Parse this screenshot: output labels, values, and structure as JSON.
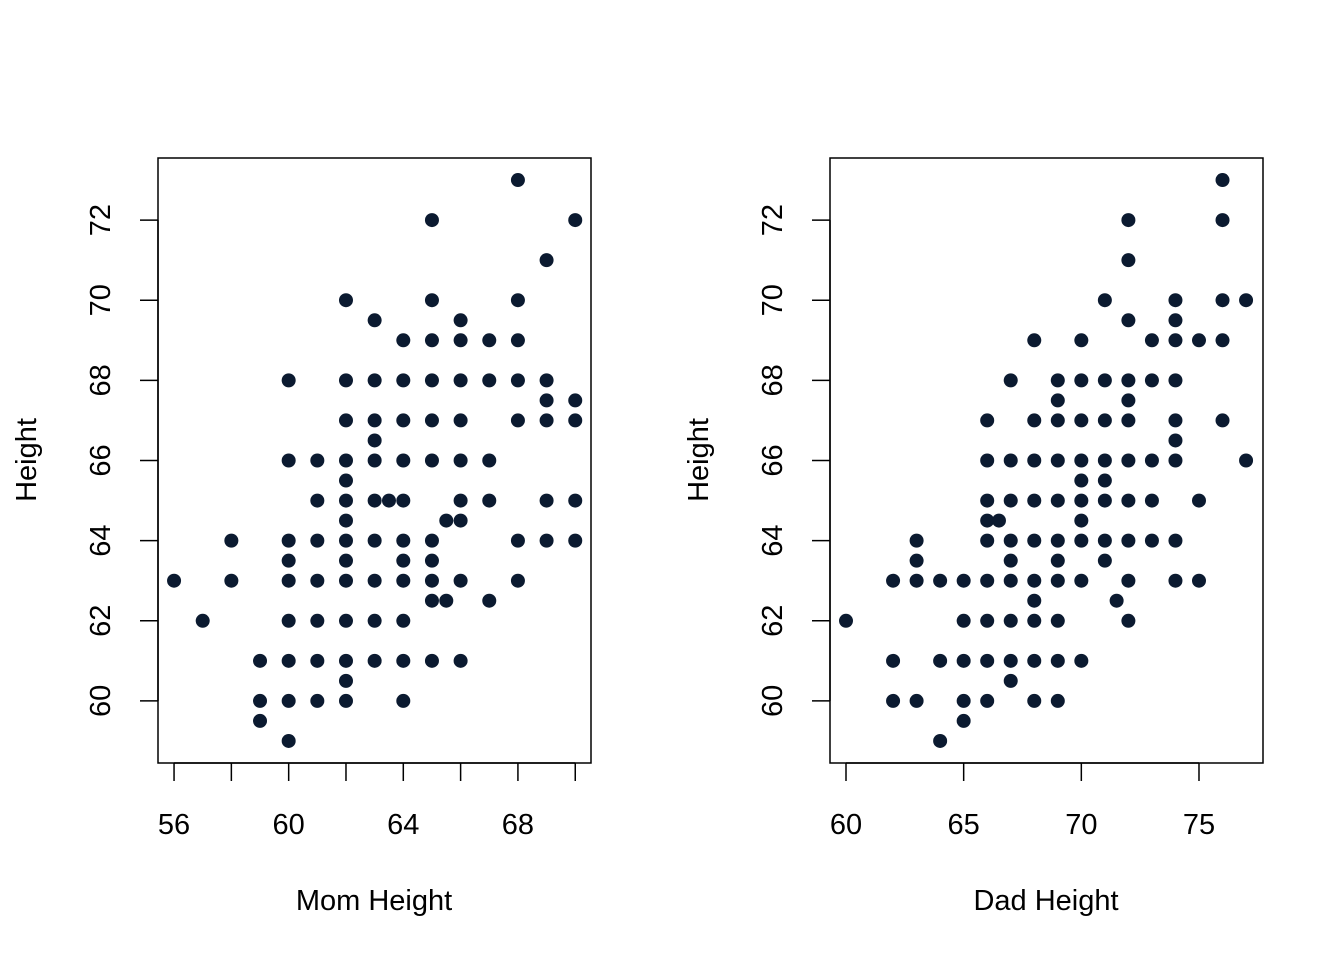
{
  "chart_data": [
    {
      "type": "scatter",
      "xlabel": "Mom Height",
      "ylabel": "Height",
      "xlim": [
        55.44,
        70.55
      ],
      "ylim": [
        58.45,
        73.55
      ],
      "xticks": [
        56,
        60,
        64,
        68
      ],
      "xticks_minor": [
        56,
        58,
        60,
        62,
        64,
        66,
        68,
        70
      ],
      "yticks": [
        60,
        62,
        64,
        66,
        68,
        70,
        72
      ],
      "grid": false,
      "point_color": "#0b1a30",
      "points": [
        [
          56,
          63
        ],
        [
          57,
          62
        ],
        [
          58,
          64
        ],
        [
          58,
          63
        ],
        [
          59,
          61
        ],
        [
          59,
          60
        ],
        [
          59,
          59.5
        ],
        [
          60,
          68
        ],
        [
          60,
          66
        ],
        [
          60,
          64
        ],
        [
          60,
          63.5
        ],
        [
          60,
          63
        ],
        [
          60,
          62
        ],
        [
          60,
          61
        ],
        [
          60,
          60
        ],
        [
          60,
          59
        ],
        [
          61,
          66
        ],
        [
          61,
          65
        ],
        [
          61,
          64
        ],
        [
          61,
          63
        ],
        [
          61,
          62
        ],
        [
          61,
          61
        ],
        [
          61,
          60
        ],
        [
          62,
          70
        ],
        [
          62,
          68
        ],
        [
          62,
          67
        ],
        [
          62,
          66
        ],
        [
          62,
          65.5
        ],
        [
          62,
          65
        ],
        [
          62,
          64.5
        ],
        [
          62,
          64
        ],
        [
          62,
          63.5
        ],
        [
          62,
          63
        ],
        [
          62,
          62
        ],
        [
          62,
          61
        ],
        [
          62,
          60.5
        ],
        [
          62,
          60
        ],
        [
          63,
          69.5
        ],
        [
          63,
          68
        ],
        [
          63,
          67
        ],
        [
          63,
          66.5
        ],
        [
          63,
          66
        ],
        [
          63,
          65
        ],
        [
          63,
          64
        ],
        [
          63,
          63
        ],
        [
          63,
          62
        ],
        [
          63,
          61
        ],
        [
          63.5,
          65
        ],
        [
          64,
          69
        ],
        [
          64,
          68
        ],
        [
          64,
          67
        ],
        [
          64,
          66
        ],
        [
          64,
          65
        ],
        [
          64,
          64
        ],
        [
          64,
          63.5
        ],
        [
          64,
          63
        ],
        [
          64,
          62
        ],
        [
          64,
          61
        ],
        [
          64,
          60
        ],
        [
          65,
          72
        ],
        [
          65,
          70
        ],
        [
          65,
          69
        ],
        [
          65,
          68
        ],
        [
          65,
          67
        ],
        [
          65,
          66
        ],
        [
          65,
          64
        ],
        [
          65,
          63.5
        ],
        [
          65,
          63
        ],
        [
          65,
          62.5
        ],
        [
          65,
          61
        ],
        [
          65.5,
          64.5
        ],
        [
          65.5,
          62.5
        ],
        [
          66,
          69.5
        ],
        [
          66,
          69
        ],
        [
          66,
          68
        ],
        [
          66,
          67
        ],
        [
          66,
          66
        ],
        [
          66,
          65
        ],
        [
          66,
          64.5
        ],
        [
          66,
          63
        ],
        [
          66,
          61
        ],
        [
          67,
          69
        ],
        [
          67,
          68
        ],
        [
          67,
          66
        ],
        [
          67,
          65
        ],
        [
          67,
          62.5
        ],
        [
          68,
          73
        ],
        [
          68,
          70
        ],
        [
          68,
          69
        ],
        [
          68,
          68
        ],
        [
          68,
          67
        ],
        [
          68,
          64
        ],
        [
          68,
          63
        ],
        [
          69,
          71
        ],
        [
          69,
          68
        ],
        [
          69,
          67.5
        ],
        [
          69,
          67
        ],
        [
          69,
          65
        ],
        [
          69,
          64
        ],
        [
          70,
          72
        ],
        [
          70,
          67.5
        ],
        [
          70,
          67
        ],
        [
          70,
          65
        ],
        [
          70,
          64
        ]
      ]
    },
    {
      "type": "scatter",
      "xlabel": "Dad Height",
      "ylabel": "Height",
      "xlim": [
        59.32,
        77.72
      ],
      "ylim": [
        58.45,
        73.55
      ],
      "xticks": [
        60,
        65,
        70,
        75
      ],
      "xticks_minor": [
        60,
        65,
        70,
        75
      ],
      "yticks": [
        60,
        62,
        64,
        66,
        68,
        70,
        72
      ],
      "grid": false,
      "point_color": "#0b1a30",
      "points": [
        [
          60,
          62
        ],
        [
          62,
          63
        ],
        [
          62,
          61
        ],
        [
          62,
          60
        ],
        [
          63,
          64
        ],
        [
          63,
          63.5
        ],
        [
          63,
          63
        ],
        [
          63,
          60
        ],
        [
          64,
          63
        ],
        [
          64,
          61
        ],
        [
          64,
          59
        ],
        [
          65,
          63
        ],
        [
          65,
          62
        ],
        [
          65,
          61
        ],
        [
          65,
          60
        ],
        [
          65,
          59.5
        ],
        [
          66,
          67
        ],
        [
          66,
          66
        ],
        [
          66,
          65
        ],
        [
          66,
          64.5
        ],
        [
          66,
          64
        ],
        [
          66,
          63
        ],
        [
          66,
          62
        ],
        [
          66,
          61
        ],
        [
          66,
          60
        ],
        [
          66.5,
          64.5
        ],
        [
          67,
          68
        ],
        [
          67,
          66
        ],
        [
          67,
          65
        ],
        [
          67,
          64
        ],
        [
          67,
          63.5
        ],
        [
          67,
          63
        ],
        [
          67,
          62
        ],
        [
          67,
          61
        ],
        [
          67,
          60.5
        ],
        [
          68,
          69
        ],
        [
          68,
          67
        ],
        [
          68,
          66
        ],
        [
          68,
          65
        ],
        [
          68,
          64
        ],
        [
          68,
          63
        ],
        [
          68,
          62.5
        ],
        [
          68,
          62
        ],
        [
          68,
          61
        ],
        [
          68,
          60
        ],
        [
          69,
          68
        ],
        [
          69,
          67.5
        ],
        [
          69,
          67
        ],
        [
          69,
          66
        ],
        [
          69,
          65
        ],
        [
          69,
          64
        ],
        [
          69,
          63.5
        ],
        [
          69,
          63
        ],
        [
          69,
          62
        ],
        [
          69,
          61
        ],
        [
          69,
          60
        ],
        [
          70,
          69
        ],
        [
          70,
          68
        ],
        [
          70,
          67
        ],
        [
          70,
          66
        ],
        [
          70,
          65.5
        ],
        [
          70,
          65
        ],
        [
          70,
          64.5
        ],
        [
          70,
          64
        ],
        [
          70,
          63
        ],
        [
          70,
          61
        ],
        [
          71,
          70
        ],
        [
          71,
          68
        ],
        [
          71,
          67
        ],
        [
          71,
          66
        ],
        [
          71,
          65.5
        ],
        [
          71,
          65
        ],
        [
          71,
          64
        ],
        [
          71,
          63.5
        ],
        [
          71.5,
          62.5
        ],
        [
          72,
          72
        ],
        [
          72,
          71
        ],
        [
          72,
          69.5
        ],
        [
          72,
          68
        ],
        [
          72,
          67.5
        ],
        [
          72,
          67
        ],
        [
          72,
          66
        ],
        [
          72,
          65
        ],
        [
          72,
          64
        ],
        [
          72,
          63
        ],
        [
          72,
          62
        ],
        [
          73,
          69
        ],
        [
          73,
          68
        ],
        [
          73,
          66
        ],
        [
          73,
          65
        ],
        [
          73,
          64
        ],
        [
          74,
          70
        ],
        [
          74,
          69.5
        ],
        [
          74,
          69
        ],
        [
          74,
          68
        ],
        [
          74,
          67
        ],
        [
          74,
          66.5
        ],
        [
          74,
          66
        ],
        [
          74,
          64
        ],
        [
          74,
          63
        ],
        [
          75,
          69
        ],
        [
          75,
          65
        ],
        [
          75,
          63
        ],
        [
          76,
          73
        ],
        [
          76,
          72
        ],
        [
          76,
          70
        ],
        [
          76,
          69
        ],
        [
          76,
          67
        ],
        [
          77,
          70
        ],
        [
          77,
          66
        ]
      ]
    }
  ]
}
